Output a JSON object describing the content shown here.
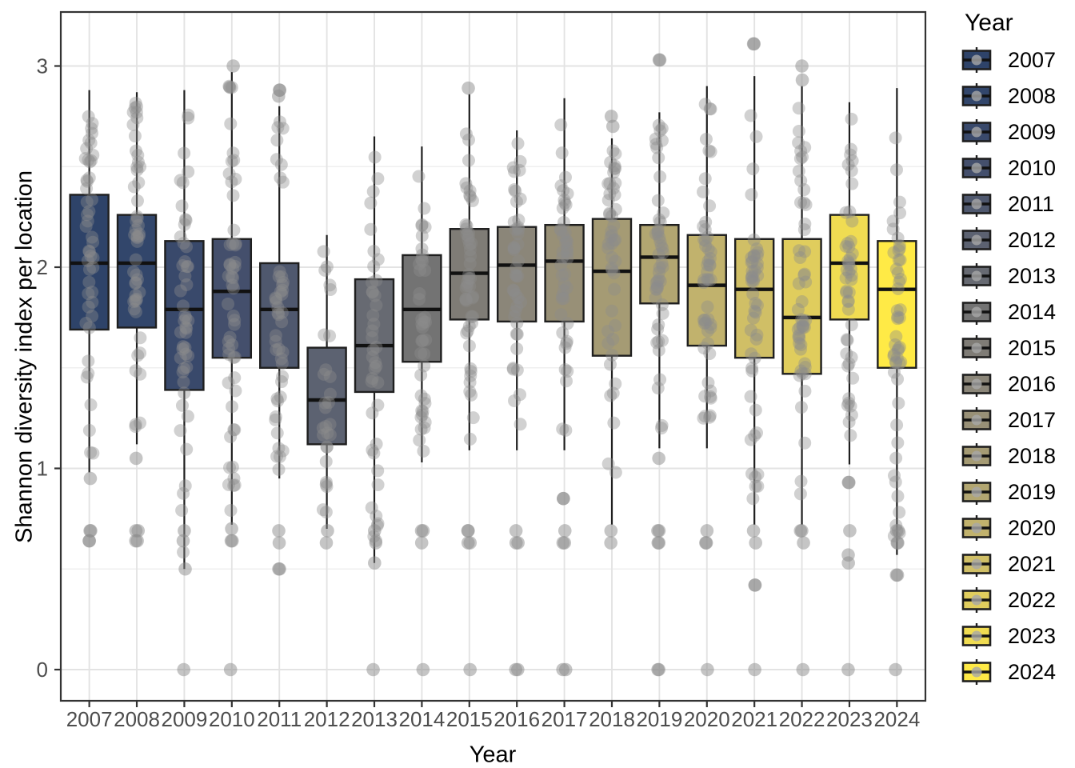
{
  "figure": {
    "y_axis_title": "Shannon diversity index per location",
    "x_axis_title": "Year",
    "legend_title": "Year",
    "colors": {
      "background": "#ffffff",
      "panel_border": "#333333",
      "grid_major": "#e3e3e3",
      "grid_minor": "#efefef",
      "tick_mark": "#333333",
      "tick_label": "#4d4d4d",
      "axis_title": "#000000",
      "box_stroke": "#1f1f1f",
      "median_line": "#111111",
      "whisker": "#1f1f1f",
      "jitter_point": "#8c8c8c",
      "legend_point": "#a8a8a8"
    }
  },
  "chart_data": {
    "type": "boxplot",
    "subtype": "boxplot-with-jittered-points",
    "title": "",
    "xlabel": "Year",
    "ylabel": "Shannon diversity index per location",
    "categories": [
      "2007",
      "2008",
      "2009",
      "2010",
      "2011",
      "2012",
      "2013",
      "2014",
      "2015",
      "2016",
      "2017",
      "2018",
      "2019",
      "2020",
      "2021",
      "2022",
      "2023",
      "2024"
    ],
    "ylim": [
      -0.15,
      3.27
    ],
    "yticks": [
      0,
      1,
      2,
      3
    ],
    "ytick_labels": [
      "0",
      "1",
      "2",
      "3"
    ],
    "minor_gridlines": [
      0.5,
      1.5,
      2.5
    ],
    "grid": true,
    "legend": {
      "title": "Year",
      "position": "right",
      "entries": [
        "2007",
        "2008",
        "2009",
        "2010",
        "2011",
        "2012",
        "2013",
        "2014",
        "2015",
        "2016",
        "2017",
        "2018",
        "2019",
        "2020",
        "2021",
        "2022",
        "2023",
        "2024"
      ]
    },
    "series": [
      {
        "year": "2007",
        "fill": "#2E4369",
        "whisker_low": 0.98,
        "q1": 1.69,
        "median": 2.02,
        "q3": 2.36,
        "whisker_high": 2.88,
        "n_jitter": 46,
        "extra_points": [
          0.95,
          0.69,
          0.69,
          0.64,
          0.64
        ]
      },
      {
        "year": "2008",
        "fill": "#32466B",
        "whisker_low": 1.12,
        "q1": 1.7,
        "median": 2.02,
        "q3": 2.26,
        "whisker_high": 2.87,
        "n_jitter": 50,
        "extra_points": [
          1.05,
          0.69,
          0.69,
          0.64,
          0.64
        ]
      },
      {
        "year": "2009",
        "fill": "#39496B",
        "whisker_low": 0.5,
        "q1": 1.39,
        "median": 1.79,
        "q3": 2.13,
        "whisker_high": 2.88,
        "n_jitter": 48,
        "extra_points": [
          0.69,
          0.64,
          0.5,
          0
        ]
      },
      {
        "year": "2010",
        "fill": "#444F6C",
        "whisker_low": 0.72,
        "q1": 1.55,
        "median": 1.88,
        "q3": 2.14,
        "whisker_high": 2.97,
        "n_jitter": 52,
        "extra_points": [
          3.0,
          0.7,
          0.64,
          0.64,
          0
        ]
      },
      {
        "year": "2011",
        "fill": "#4F586E",
        "whisker_low": 0.95,
        "q1": 1.5,
        "median": 1.79,
        "q3": 2.02,
        "whisker_high": 2.8,
        "n_jitter": 44,
        "extra_points": [
          2.88,
          2.88,
          2.85,
          0.69,
          0.63,
          0.5,
          0.5
        ]
      },
      {
        "year": "2012",
        "fill": "#5C6271",
        "whisker_low": 0.7,
        "q1": 1.12,
        "median": 1.34,
        "q3": 1.6,
        "whisker_high": 2.16,
        "n_jitter": 28,
        "extra_points": [
          0.69,
          0.63
        ]
      },
      {
        "year": "2013",
        "fill": "#676A72",
        "whisker_low": 0.53,
        "q1": 1.38,
        "median": 1.61,
        "q3": 1.94,
        "whisker_high": 2.65,
        "n_jitter": 40,
        "extra_points": [
          0.69,
          0.63,
          0.53,
          0
        ]
      },
      {
        "year": "2014",
        "fill": "#737373",
        "whisker_low": 1.03,
        "q1": 1.53,
        "median": 1.79,
        "q3": 2.06,
        "whisker_high": 2.6,
        "n_jitter": 40,
        "extra_points": [
          0.69,
          0.69,
          0.63,
          0
        ]
      },
      {
        "year": "2015",
        "fill": "#7F7C76",
        "whisker_low": 1.09,
        "q1": 1.74,
        "median": 1.97,
        "q3": 2.19,
        "whisker_high": 2.86,
        "n_jitter": 48,
        "extra_points": [
          2.89,
          0.69,
          0.69,
          0.63,
          0.63,
          0
        ]
      },
      {
        "year": "2016",
        "fill": "#8B8679",
        "whisker_low": 1.09,
        "q1": 1.73,
        "median": 2.01,
        "q3": 2.2,
        "whisker_high": 2.68,
        "n_jitter": 42,
        "extra_points": [
          0.69,
          0.63,
          0.63,
          0,
          0
        ]
      },
      {
        "year": "2017",
        "fill": "#989077",
        "whisker_low": 1.09,
        "q1": 1.73,
        "median": 2.03,
        "q3": 2.21,
        "whisker_high": 2.84,
        "n_jitter": 44,
        "extra_points": [
          0.85,
          0.85,
          0.69,
          0.63,
          0.63,
          0,
          0
        ]
      },
      {
        "year": "2018",
        "fill": "#A59B74",
        "whisker_low": 0.72,
        "q1": 1.56,
        "median": 1.98,
        "q3": 2.24,
        "whisker_high": 2.64,
        "n_jitter": 46,
        "extra_points": [
          2.75,
          2.7,
          0.69,
          0.63
        ]
      },
      {
        "year": "2019",
        "fill": "#B2A671",
        "whisker_low": 1.1,
        "q1": 1.82,
        "median": 2.05,
        "q3": 2.21,
        "whisker_high": 2.77,
        "n_jitter": 48,
        "extra_points": [
          3.03,
          3.03,
          1.05,
          0.69,
          0.69,
          0.63,
          0.63,
          0,
          0
        ]
      },
      {
        "year": "2020",
        "fill": "#C1B26D",
        "whisker_low": 1.1,
        "q1": 1.61,
        "median": 1.91,
        "q3": 2.16,
        "whisker_high": 2.9,
        "n_jitter": 50,
        "extra_points": [
          0.69,
          0.63,
          0.63,
          0
        ]
      },
      {
        "year": "2021",
        "fill": "#D0BF66",
        "whisker_low": 0.72,
        "q1": 1.55,
        "median": 1.89,
        "q3": 2.14,
        "whisker_high": 2.95,
        "n_jitter": 48,
        "extra_points": [
          3.11,
          3.11,
          0.69,
          0.63,
          0.42,
          0.42,
          0
        ]
      },
      {
        "year": "2022",
        "fill": "#E0CD5D",
        "whisker_low": 0.72,
        "q1": 1.47,
        "median": 1.75,
        "q3": 2.14,
        "whisker_high": 2.9,
        "n_jitter": 50,
        "extra_points": [
          3.0,
          2.93,
          0.69,
          0.69,
          0.63,
          0
        ]
      },
      {
        "year": "2023",
        "fill": "#F0DC52",
        "whisker_low": 1.02,
        "q1": 1.74,
        "median": 2.02,
        "q3": 2.26,
        "whisker_high": 2.82,
        "n_jitter": 46,
        "extra_points": [
          0.93,
          0.93,
          0.69,
          0.57,
          0.53,
          0
        ]
      },
      {
        "year": "2024",
        "fill": "#FFEA46",
        "whisker_low": 0.57,
        "q1": 1.5,
        "median": 1.89,
        "q3": 2.13,
        "whisker_high": 2.89,
        "n_jitter": 48,
        "extra_points": [
          0.69,
          0.69,
          0.63,
          0.63,
          0.47,
          0.47,
          0
        ]
      }
    ]
  }
}
